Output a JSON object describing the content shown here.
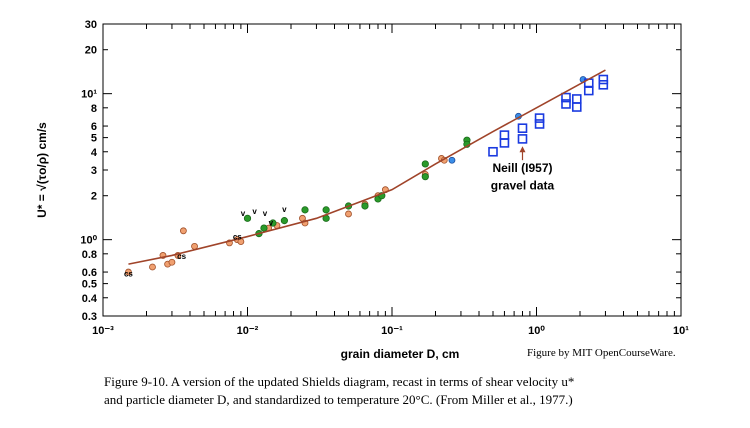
{
  "chart_data": {
    "type": "scatter",
    "xlabel": "grain diameter D, cm",
    "ylabel": "U* = √(τo/ρ)  cm/s",
    "credit": "Figure by MIT OpenCourseWare.",
    "caption": [
      "Figure 9-10.  A version of the updated Shields diagram, recast in terms of shear velocity u*",
      "and particle diameter D, and standardized to temperature 20°C.  (From Miller et al., 1977.)"
    ],
    "xscale": "log",
    "yscale": "log",
    "xlim": [
      0.001,
      10
    ],
    "ylim": [
      0.3,
      30
    ],
    "xticks": [
      {
        "value": 0.001,
        "label": "10⁻³"
      },
      {
        "value": 0.01,
        "label": "10⁻²"
      },
      {
        "value": 0.1,
        "label": "10⁻¹"
      },
      {
        "value": 1,
        "label": "10⁰"
      },
      {
        "value": 10,
        "label": "10¹"
      }
    ],
    "yticks": [
      0.3,
      0.4,
      0.5,
      0.6,
      0.8,
      {
        "value": 1,
        "label": "10⁰"
      },
      2,
      3,
      4,
      5,
      6,
      8,
      {
        "value": 10,
        "label": "10¹"
      },
      20,
      30
    ],
    "series": [
      {
        "kind": "circle",
        "color": "#f0a070",
        "edge": "#a0502a",
        "x": [
          0.0015,
          0.0022,
          0.0026,
          0.0028,
          0.003,
          0.0033,
          0.0036,
          0.0043,
          0.0075,
          0.0085,
          0.009,
          0.012,
          0.014,
          0.016,
          0.024,
          0.025,
          0.05,
          0.065,
          0.08,
          0.09,
          0.17,
          0.22,
          0.23
        ],
        "values": [
          0.6,
          0.65,
          0.78,
          0.68,
          0.7,
          0.78,
          1.15,
          0.9,
          0.95,
          1.0,
          0.97,
          1.1,
          1.2,
          1.25,
          1.4,
          1.3,
          1.5,
          1.75,
          2.0,
          2.2,
          2.8,
          3.6,
          3.5
        ]
      },
      {
        "kind": "dot",
        "color": "#2a9a2a",
        "edge": "#1a6a1a",
        "x": [
          0.01,
          0.012,
          0.013,
          0.015,
          0.018,
          0.025,
          0.035,
          0.035,
          0.05,
          0.065,
          0.08,
          0.085,
          0.17,
          0.17,
          0.33,
          0.33
        ],
        "values": [
          1.4,
          1.1,
          1.2,
          1.3,
          1.35,
          1.6,
          1.4,
          1.6,
          1.7,
          1.7,
          1.9,
          2.0,
          2.7,
          3.3,
          4.8,
          4.5
        ]
      },
      {
        "kind": "circle",
        "color": "#3a8ee8",
        "edge": "#1a4a9a",
        "x": [
          0.26,
          0.75,
          2.1
        ],
        "values": [
          3.5,
          7.0,
          12.5
        ]
      },
      {
        "kind": "square",
        "color": "#1a3ae0",
        "x": [
          0.5,
          0.6,
          0.6,
          0.8,
          0.8,
          1.05,
          1.05,
          1.6,
          1.6,
          1.9,
          1.9,
          2.3,
          2.3,
          2.9,
          2.9
        ],
        "values": [
          4.0,
          4.6,
          5.2,
          4.9,
          5.8,
          6.2,
          6.8,
          8.5,
          9.4,
          8.1,
          9.2,
          10.5,
          11.8,
          11.5,
          12.5
        ]
      },
      {
        "kind": "line",
        "color": "#a0442a",
        "x": [
          0.0015,
          0.003,
          0.01,
          0.03,
          0.1,
          0.2,
          0.5,
          1,
          3
        ],
        "values": [
          0.68,
          0.78,
          1.05,
          1.4,
          2.2,
          3.3,
          5.5,
          8,
          14.5
        ]
      }
    ],
    "annotations": [
      {
        "text": "v",
        "x": 0.0093,
        "y": 1.45
      },
      {
        "text": "v",
        "x": 0.0112,
        "y": 1.5
      },
      {
        "text": "v",
        "x": 0.0132,
        "y": 1.45
      },
      {
        "text": "v",
        "x": 0.0145,
        "y": 1.25
      },
      {
        "text": "v",
        "x": 0.018,
        "y": 1.55
      },
      {
        "text": "cs",
        "x": 0.0015,
        "y": 0.56
      },
      {
        "text": "cs",
        "x": 0.0035,
        "y": 0.74
      },
      {
        "text": "cs",
        "x": 0.0085,
        "y": 1.0
      },
      {
        "text": "Neill (I957)",
        "x": 0.8,
        "y": 2.9,
        "bold": true,
        "arrow_to": 4.5
      },
      {
        "text": "gravel data",
        "x": 0.8,
        "y": 2.2,
        "bold": true
      }
    ]
  }
}
